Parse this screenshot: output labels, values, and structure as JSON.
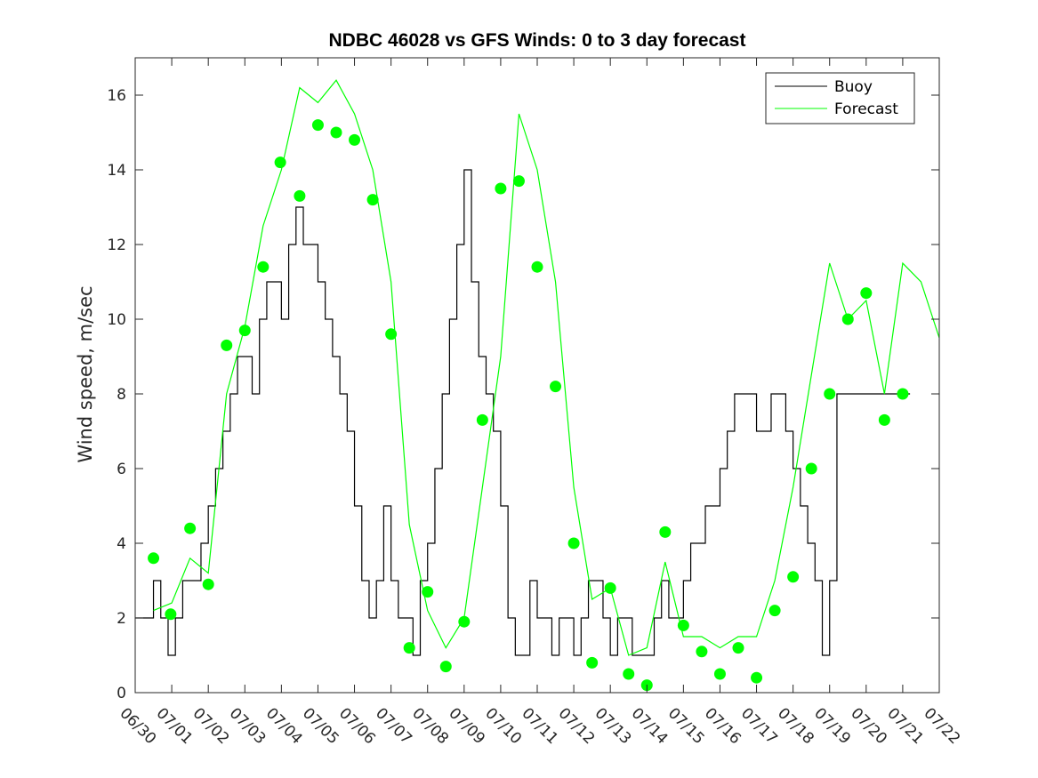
{
  "chart_data": {
    "type": "line",
    "title": "NDBC 46028 vs GFS Winds: 0 to 3 day forecast",
    "xlabel": "",
    "ylabel": "Wind speed, m/sec",
    "xlim": [
      0,
      22
    ],
    "ylim": [
      0,
      17
    ],
    "x_tick_labels": [
      "06/30",
      "07/01",
      "07/02",
      "07/03",
      "07/04",
      "07/05",
      "07/06",
      "07/07",
      "07/08",
      "07/09",
      "07/10",
      "07/11",
      "07/12",
      "07/13",
      "07/14",
      "07/15",
      "07/16",
      "07/17",
      "07/18",
      "07/19",
      "07/20",
      "07/21",
      "07/22"
    ],
    "y_ticks": [
      0,
      2,
      4,
      6,
      8,
      10,
      12,
      14,
      16
    ],
    "grid": false,
    "legend": {
      "position": "top-right",
      "entries": [
        "Buoy",
        "Forecast"
      ]
    },
    "colors": {
      "buoy": "#000000",
      "forecast": "#00ff00"
    },
    "series": [
      {
        "name": "Buoy",
        "x": [
          0,
          0.3,
          0.5,
          0.7,
          0.9,
          1.1,
          1.3,
          1.5,
          1.8,
          2.0,
          2.2,
          2.4,
          2.6,
          2.8,
          3.0,
          3.2,
          3.4,
          3.6,
          3.8,
          4.0,
          4.2,
          4.4,
          4.6,
          4.8,
          5.0,
          5.2,
          5.4,
          5.6,
          5.8,
          6.0,
          6.2,
          6.4,
          6.6,
          6.8,
          7.0,
          7.2,
          7.4,
          7.6,
          7.8,
          8.0,
          8.2,
          8.4,
          8.6,
          8.8,
          9.0,
          9.2,
          9.4,
          9.6,
          9.8,
          10.0,
          10.2,
          10.4,
          10.6,
          10.8,
          11.0,
          11.2,
          11.4,
          11.6,
          11.8,
          12.0,
          12.2,
          12.4,
          12.6,
          12.8,
          13.0,
          13.2,
          13.4,
          13.6,
          13.8,
          14.0,
          14.2,
          14.4,
          14.6,
          14.8,
          15.0,
          15.2,
          15.4,
          15.6,
          15.8,
          16.0,
          16.2,
          16.4,
          16.6,
          16.8,
          17.0,
          17.2,
          17.4,
          17.6,
          17.8,
          18.0,
          18.2,
          18.4,
          18.6,
          18.8,
          19.0,
          19.2,
          19.4,
          19.6,
          19.8,
          20.0,
          20.2,
          20.4,
          20.6,
          20.8,
          21.0,
          21.2
        ],
        "y": [
          2,
          2,
          3,
          2,
          1,
          2,
          3,
          3,
          4,
          5,
          6,
          7,
          8,
          9,
          9,
          8,
          10,
          11,
          11,
          10,
          12,
          13,
          12,
          12,
          11,
          10,
          9,
          8,
          7,
          5,
          3,
          2,
          3,
          5,
          3,
          2,
          2,
          1,
          3,
          4,
          6,
          8,
          10,
          12,
          14,
          11,
          9,
          8,
          7,
          5,
          2,
          1,
          1,
          3,
          2,
          2,
          1,
          2,
          2,
          1,
          2,
          3,
          3,
          2,
          1,
          2,
          2,
          1,
          1,
          1,
          2,
          3,
          2,
          2,
          3,
          4,
          4,
          5,
          5,
          6,
          7,
          8,
          8,
          8,
          7,
          7,
          8,
          8,
          7,
          6,
          5,
          4,
          3,
          1,
          3,
          8,
          8,
          8,
          8,
          8,
          8,
          8,
          8,
          8,
          8,
          8
        ]
      },
      {
        "name": "Forecast",
        "x": [
          0.5,
          1.0,
          1.5,
          2.0,
          2.5,
          3.0,
          3.5,
          4.0,
          4.5,
          5.0,
          5.5,
          6.0,
          6.5,
          7.0,
          7.5,
          8.0,
          8.5,
          9.0,
          9.5,
          10.0,
          10.5,
          11.0,
          11.5,
          12.0,
          12.5,
          13.0,
          13.5,
          14.0,
          14.5,
          15.0,
          15.5,
          16.0,
          16.5,
          17.0,
          17.5,
          18.0,
          18.5,
          19.0,
          19.5,
          20.0,
          20.5,
          21.0,
          21.5,
          22.0
        ],
        "y": [
          2.2,
          2.4,
          3.6,
          3.2,
          8.0,
          9.8,
          12.5,
          14.0,
          16.2,
          15.8,
          16.4,
          15.5,
          14.0,
          11.0,
          4.5,
          2.2,
          1.2,
          2.0,
          5.5,
          9.0,
          15.5,
          14.0,
          11.0,
          5.5,
          2.5,
          2.8,
          1.0,
          1.2,
          3.5,
          1.5,
          1.5,
          1.2,
          1.5,
          1.5,
          3.0,
          5.5,
          8.5,
          11.5,
          10.0,
          10.5,
          8.0,
          11.5,
          11.0,
          9.5
        ]
      },
      {
        "name": "",
        "x": [
          0.5,
          0.97,
          1.5,
          2.0,
          2.5,
          3.0,
          3.5,
          3.97,
          4.5,
          5.0,
          5.5,
          6.0,
          6.5,
          7.0,
          7.5,
          8.0,
          8.5,
          9.0,
          9.5,
          10.0,
          10.5,
          11.0,
          11.5,
          12.0,
          12.5,
          13.0,
          13.5,
          14.0,
          14.5,
          15.0,
          15.5,
          16.0,
          16.5,
          17.0,
          17.5,
          18.0,
          18.5,
          19.0,
          19.5,
          20.0,
          20.5,
          21.0
        ],
        "y": [
          3.6,
          2.1,
          4.4,
          2.9,
          9.3,
          9.7,
          11.4,
          14.2,
          13.3,
          15.2,
          15.0,
          14.8,
          13.2,
          9.6,
          1.2,
          2.7,
          0.7,
          1.9,
          7.3,
          13.5,
          13.7,
          11.4,
          8.2,
          4.0,
          0.8,
          2.8,
          0.5,
          0.2,
          4.3,
          1.8,
          1.1,
          0.5,
          1.2,
          0.4,
          2.2,
          3.1,
          6.0,
          8.0,
          10.0,
          10.7,
          7.3,
          8.0
        ]
      }
    ]
  }
}
